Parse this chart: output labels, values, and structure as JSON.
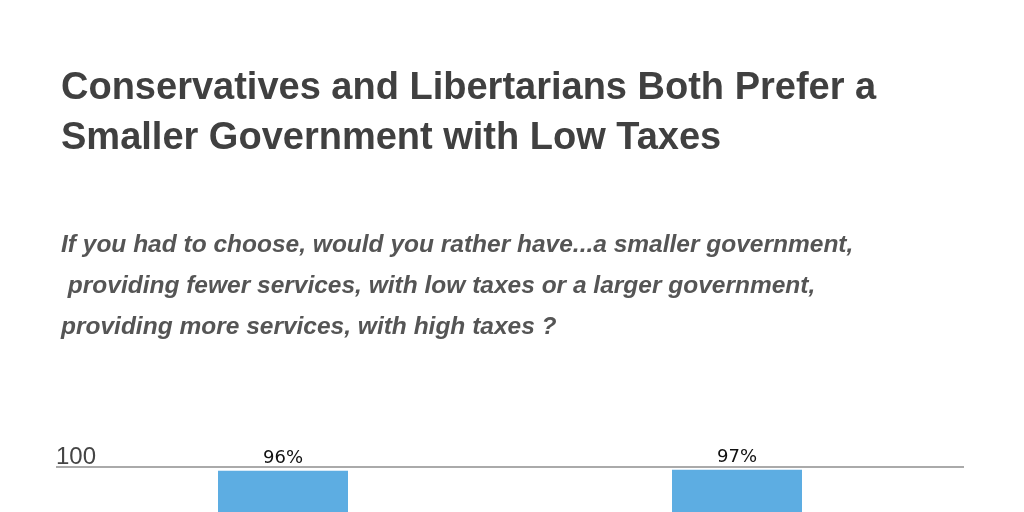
{
  "chart_data": {
    "type": "bar",
    "title": "Conservatives and Libertarians Both Prefer a Smaller Government with Low Taxes",
    "subtitle": "If you had to choose, would you rather have...a smaller government, providing fewer services, with low taxes or a larger government, providing more services, with high taxes ?",
    "categories": [
      null,
      null
    ],
    "values": [
      96,
      97
    ],
    "color": "#5dade2",
    "value_labels": [
      "96%",
      "97%"
    ],
    "ylim": [
      0,
      100
    ],
    "yticks": [
      100
    ],
    "ref_lines": [
      {
        "axis": "y",
        "value": 100,
        "color": "#aaaaaa"
      }
    ]
  }
}
